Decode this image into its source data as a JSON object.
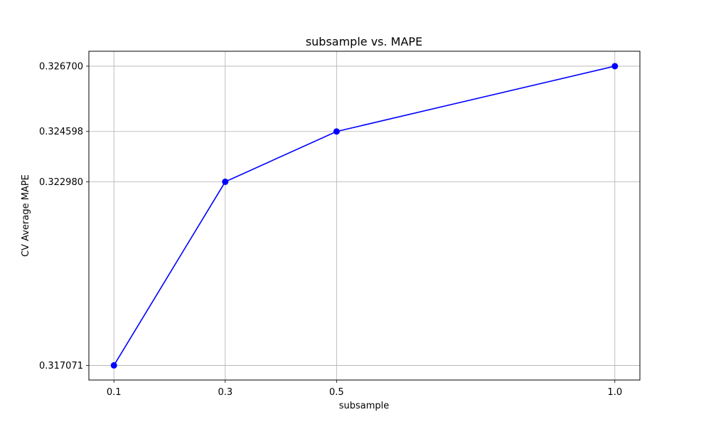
{
  "chart_data": {
    "type": "line",
    "title": "subsample vs. MAPE",
    "xlabel": "subsample",
    "ylabel": "CV Average MAPE",
    "x": [
      0.1,
      0.3,
      0.5,
      1.0
    ],
    "x_tick_labels": [
      "0.1",
      "0.3",
      "0.5",
      "1.0"
    ],
    "y_tick_values": [
      0.317071,
      0.32298,
      0.324598,
      0.3267
    ],
    "y_tick_labels": [
      "0.317071",
      "0.322980",
      "0.324598",
      "0.326700"
    ],
    "xlim": [
      0.055,
      1.045
    ],
    "ylim": [
      0.3166,
      0.32718
    ],
    "series": [
      {
        "values": [
          0.317071,
          0.32298,
          0.324598,
          0.3267
        ],
        "color": "#0000ff",
        "marker": "circle"
      }
    ],
    "grid": true
  }
}
